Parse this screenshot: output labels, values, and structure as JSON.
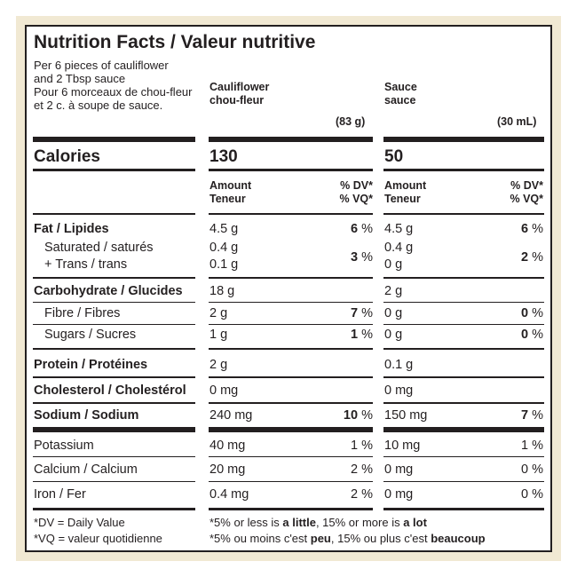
{
  "title": "Nutrition Facts / Valeur nutritive",
  "serving": {
    "line1": "Per 6 pieces of cauliflower",
    "line2": "and 2 Tbsp sauce",
    "line3": "Pour 6 morceaux de chou-fleur",
    "line4": "et 2 c. à soupe de sauce."
  },
  "columns": {
    "cauliflower": {
      "name_en": "Cauliflower",
      "name_fr": "chou-fleur",
      "size": "(83 g)",
      "calories": "130"
    },
    "sauce": {
      "name_en": "Sauce",
      "name_fr": "sauce",
      "size": "(30 mL)",
      "calories": "50"
    }
  },
  "calories_label": "Calories",
  "amount_label": "Amount",
  "teneur_label": "Teneur",
  "dv_label": "% DV*",
  "vq_label": "% VQ*",
  "nutrients": {
    "fat": {
      "label": "Fat / Lipides",
      "c_amt": "4.5 g",
      "c_pct": "6",
      "s_amt": "4.5 g",
      "s_pct": "6"
    },
    "sat": {
      "label": "Saturated / saturés",
      "c_amt": "0.4 g",
      "s_amt": "0.4 g"
    },
    "trans": {
      "label": "+ Trans / trans",
      "c_amt": "0.1 g",
      "s_amt": "0 g"
    },
    "sat_trans_pct": {
      "c_pct": "3",
      "s_pct": "2"
    },
    "carb": {
      "label": "Carbohydrate / Glucides",
      "c_amt": "18 g",
      "s_amt": "2 g"
    },
    "fibre": {
      "label": "Fibre / Fibres",
      "c_amt": "2 g",
      "c_pct": "7",
      "s_amt": "0 g",
      "s_pct": "0"
    },
    "sugars": {
      "label": "Sugars / Sucres",
      "c_amt": "1 g",
      "c_pct": "1",
      "s_amt": "0 g",
      "s_pct": "0"
    },
    "protein": {
      "label": "Protein / Protéines",
      "c_amt": "2 g",
      "s_amt": "0.1 g"
    },
    "chol": {
      "label": "Cholesterol / Cholestérol",
      "c_amt": "0 mg",
      "s_amt": "0 mg"
    },
    "sodium": {
      "label": "Sodium / Sodium",
      "c_amt": "240 mg",
      "c_pct": "10",
      "s_amt": "150 mg",
      "s_pct": "7"
    },
    "potassium": {
      "label": "Potassium",
      "c_amt": "40 mg",
      "c_pct": "1",
      "s_amt": "10 mg",
      "s_pct": "1"
    },
    "calcium": {
      "label": "Calcium / Calcium",
      "c_amt": "20 mg",
      "c_pct": "2",
      "s_amt": "0 mg",
      "s_pct": "0"
    },
    "iron": {
      "label": "Iron / Fer",
      "c_amt": "0.4 mg",
      "c_pct": "2",
      "s_amt": "0 mg",
      "s_pct": "0"
    }
  },
  "percent_sign": "%",
  "footnotes": {
    "dv": "*DV = Daily Value",
    "vq": "*VQ = valeur quotidienne",
    "en_pre": "*5% or less is ",
    "en_little": "a little",
    "en_mid": ", 15% or more is ",
    "en_lot": "a lot",
    "fr_pre": "*5% ou moins c'est ",
    "fr_peu": "peu",
    "fr_mid": ", 15% ou plus c'est ",
    "fr_beaucoup": "beaucoup"
  },
  "colors": {
    "ink": "#231f20",
    "border_bg": "#f1e9d3"
  }
}
